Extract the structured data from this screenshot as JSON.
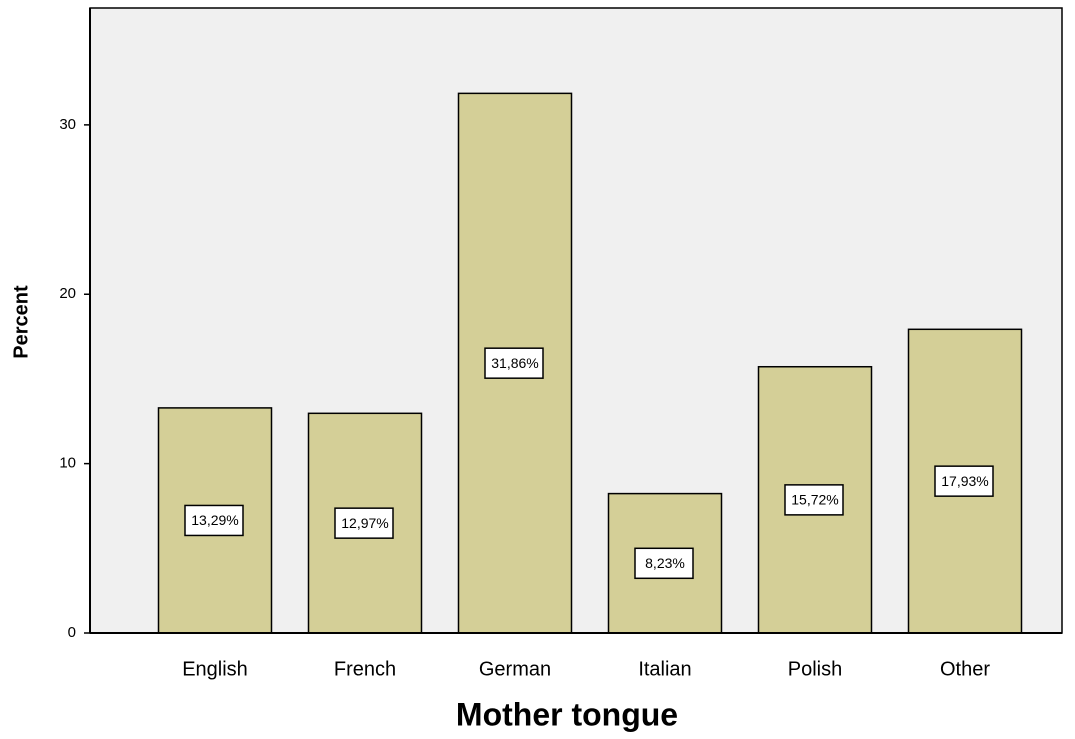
{
  "chart_data": {
    "type": "bar",
    "x_label": "Mother tongue",
    "y_label": "Percent",
    "categories": [
      "English",
      "French",
      "German",
      "Italian",
      "Polish",
      "Other"
    ],
    "values": [
      13.29,
      12.97,
      31.86,
      8.23,
      15.72,
      17.93
    ],
    "value_labels": [
      "13,29%",
      "12,97%",
      "31,86%",
      "8,23%",
      "15,72%",
      "17,93%"
    ],
    "color": "#d4cf97",
    "ylim": [
      0,
      36.9
    ],
    "yticks": [
      0,
      10,
      20,
      30
    ],
    "grid": false
  }
}
